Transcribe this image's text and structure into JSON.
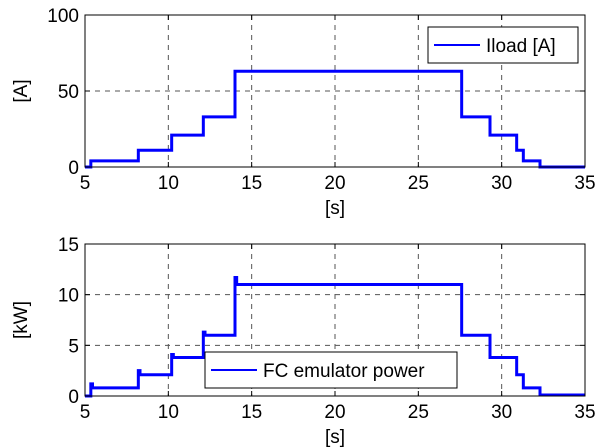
{
  "chart_data": [
    {
      "type": "line",
      "title": "",
      "xlabel": "[s]",
      "ylabel": "[A]",
      "xlim": [
        5,
        35
      ],
      "ylim": [
        0,
        100
      ],
      "xticks": [
        "5",
        "10",
        "15",
        "20",
        "25",
        "30",
        "35"
      ],
      "yticks": [
        "0",
        "50",
        "100"
      ],
      "grid": true,
      "legend_position": "top-right",
      "series": [
        {
          "name": "Iload [A]",
          "color": "#0000ff",
          "x": [
            5,
            5.35,
            5.35,
            8.2,
            8.2,
            10.2,
            10.2,
            12.1,
            12.1,
            14,
            14,
            27.6,
            27.6,
            29.3,
            29.3,
            30.9,
            30.9,
            31.3,
            31.3,
            32.3,
            32.3,
            35
          ],
          "y": [
            0,
            0,
            4,
            4,
            11,
            11,
            21,
            21,
            33,
            33,
            63,
            63,
            33,
            33,
            21,
            21,
            11,
            11,
            4,
            4,
            0,
            0
          ]
        }
      ]
    },
    {
      "type": "line",
      "title": "",
      "xlabel": "[s]",
      "ylabel": "[kW]",
      "xlim": [
        5,
        35
      ],
      "ylim": [
        0,
        15
      ],
      "xticks": [
        "5",
        "10",
        "15",
        "20",
        "25",
        "30",
        "35"
      ],
      "yticks": [
        "0",
        "5",
        "10",
        "15"
      ],
      "grid": true,
      "legend_position": "bottom-center",
      "series": [
        {
          "name": "FC emulator power",
          "color": "#0000ff",
          "x": [
            5,
            5.35,
            5.35,
            5.45,
            5.45,
            8.2,
            8.2,
            8.3,
            8.3,
            10.2,
            10.2,
            10.3,
            10.3,
            12.1,
            12.1,
            12.2,
            12.2,
            14,
            14,
            14.1,
            14.1,
            27.6,
            27.6,
            29.3,
            29.3,
            30.9,
            30.9,
            31.3,
            31.3,
            32.3,
            32.3,
            35
          ],
          "y": [
            0,
            0,
            1.2,
            1.2,
            0.8,
            0.8,
            2.5,
            2.5,
            2.1,
            2.1,
            4.1,
            4.1,
            3.8,
            3.8,
            6.3,
            6.3,
            6.0,
            6.0,
            11.7,
            11.7,
            11.0,
            11.0,
            6.0,
            6.0,
            3.8,
            3.8,
            2.1,
            2.1,
            0.8,
            0.8,
            0.1,
            0.1
          ]
        }
      ]
    }
  ]
}
